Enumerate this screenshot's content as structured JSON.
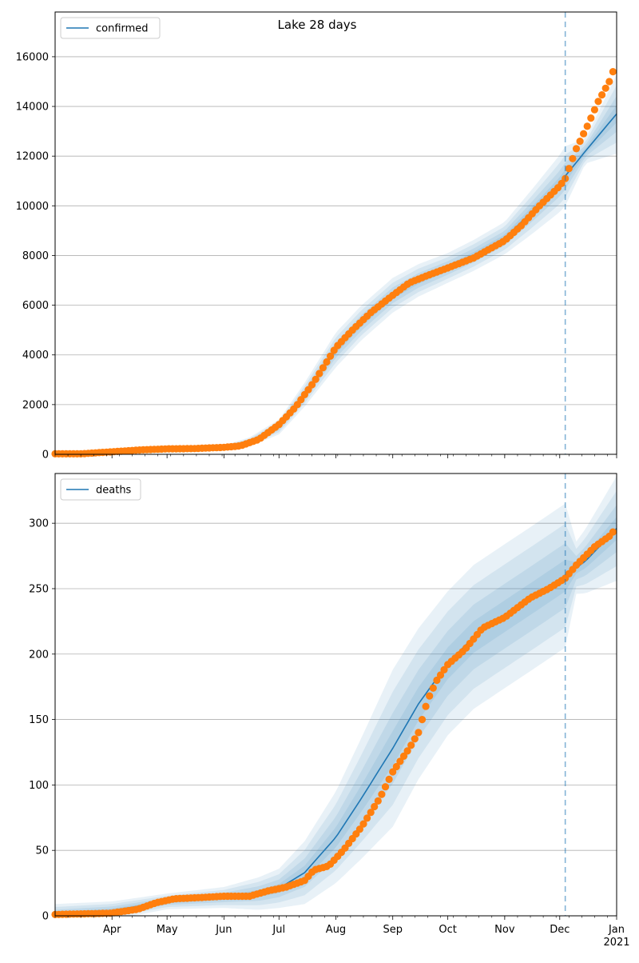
{
  "figure_title": "Lake 28 days",
  "colors": {
    "model": "#1f77b4",
    "observed": "#ff7f0e",
    "band": "#1f77b4",
    "grid": "#b0b0b0",
    "cutoff": "#1f77b4"
  },
  "x_axis": {
    "month_labels": [
      {
        "date": "2020-04-01",
        "label": "Apr"
      },
      {
        "date": "2020-05-01",
        "label": "May"
      },
      {
        "date": "2020-06-01",
        "label": "Jun"
      },
      {
        "date": "2020-07-01",
        "label": "Jul"
      },
      {
        "date": "2020-08-01",
        "label": "Aug"
      },
      {
        "date": "2020-09-01",
        "label": "Sep"
      },
      {
        "date": "2020-10-01",
        "label": "Oct"
      },
      {
        "date": "2020-11-01",
        "label": "Nov"
      },
      {
        "date": "2020-12-01",
        "label": "Dec"
      },
      {
        "date": "2021-01-01",
        "label": "Jan"
      }
    ],
    "year_label": "2021"
  },
  "chart_data": [
    {
      "type": "line",
      "title": "Lake 28 days",
      "xlim": [
        "2020-03-01",
        "2021-01-01"
      ],
      "ylim": [
        0,
        17800
      ],
      "yticks": [
        0,
        2000,
        4000,
        6000,
        8000,
        10000,
        12000,
        14000,
        16000
      ],
      "grid": "horizontal",
      "legend": "top-left",
      "cutoff_date": "2020-12-04",
      "series": [
        {
          "name": "confirmed",
          "kind": "model",
          "points": [
            [
              "2020-03-01",
              20
            ],
            [
              "2020-04-01",
              80
            ],
            [
              "2020-05-01",
              200
            ],
            [
              "2020-06-01",
              280
            ],
            [
              "2020-06-15",
              500
            ],
            [
              "2020-07-01",
              1100
            ],
            [
              "2020-07-15",
              2400
            ],
            [
              "2020-08-01",
              4200
            ],
            [
              "2020-08-15",
              5300
            ],
            [
              "2020-09-01",
              6400
            ],
            [
              "2020-09-15",
              7000
            ],
            [
              "2020-10-01",
              7500
            ],
            [
              "2020-10-15",
              8000
            ],
            [
              "2020-11-01",
              8700
            ],
            [
              "2020-11-15",
              9700
            ],
            [
              "2020-12-01",
              10900
            ],
            [
              "2020-12-04",
              11200
            ],
            [
              "2020-12-15",
              12200
            ],
            [
              "2021-01-01",
              13700
            ]
          ],
          "band_halfwidths": [
            [
              "2020-03-01",
              10
            ],
            [
              "2020-06-01",
              80
            ],
            [
              "2020-07-01",
              300
            ],
            [
              "2020-08-01",
              700
            ],
            [
              "2020-09-01",
              700
            ],
            [
              "2020-10-01",
              600
            ],
            [
              "2020-11-01",
              650
            ],
            [
              "2020-12-04",
              1200
            ],
            [
              "2020-12-15",
              500
            ],
            [
              "2021-01-01",
              1600
            ]
          ]
        },
        {
          "name": "",
          "kind": "observed",
          "points": [
            [
              "2020-03-01",
              20
            ],
            [
              "2020-03-15",
              20
            ],
            [
              "2020-04-01",
              100
            ],
            [
              "2020-04-15",
              170
            ],
            [
              "2020-05-01",
              220
            ],
            [
              "2020-05-15",
              230
            ],
            [
              "2020-06-01",
              280
            ],
            [
              "2020-06-10",
              340
            ],
            [
              "2020-06-20",
              600
            ],
            [
              "2020-07-01",
              1200
            ],
            [
              "2020-07-10",
              1900
            ],
            [
              "2020-07-20",
              2900
            ],
            [
              "2020-08-01",
              4300
            ],
            [
              "2020-08-10",
              5000
            ],
            [
              "2020-08-20",
              5700
            ],
            [
              "2020-09-01",
              6400
            ],
            [
              "2020-09-10",
              6900
            ],
            [
              "2020-09-20",
              7200
            ],
            [
              "2020-10-01",
              7500
            ],
            [
              "2020-10-15",
              7900
            ],
            [
              "2020-11-01",
              8600
            ],
            [
              "2020-11-10",
              9200
            ],
            [
              "2020-11-20",
              10000
            ],
            [
              "2020-12-01",
              10800
            ],
            [
              "2020-12-04",
              11100
            ],
            [
              "2020-12-10",
              12300
            ],
            [
              "2020-12-16",
              13200
            ],
            [
              "2020-12-22",
              14200
            ],
            [
              "2020-12-28",
              15000
            ],
            [
              "2020-12-31",
              15600
            ]
          ]
        }
      ]
    },
    {
      "type": "line",
      "title": "",
      "xlim": [
        "2020-03-01",
        "2021-01-01"
      ],
      "ylim": [
        0,
        338
      ],
      "yticks": [
        0,
        50,
        100,
        150,
        200,
        250,
        300
      ],
      "grid": "horizontal",
      "legend": "top-left",
      "cutoff_date": "2020-12-04",
      "series": [
        {
          "name": "deaths",
          "kind": "model",
          "points": [
            [
              "2020-03-01",
              1
            ],
            [
              "2020-04-01",
              4
            ],
            [
              "2020-05-01",
              11
            ],
            [
              "2020-06-01",
              14
            ],
            [
              "2020-06-20",
              17
            ],
            [
              "2020-07-01",
              21
            ],
            [
              "2020-07-15",
              33
            ],
            [
              "2020-08-01",
              60
            ],
            [
              "2020-08-15",
              90
            ],
            [
              "2020-09-01",
              128
            ],
            [
              "2020-09-15",
              162
            ],
            [
              "2020-10-01",
              193
            ],
            [
              "2020-10-15",
              213
            ],
            [
              "2020-11-01",
              229
            ],
            [
              "2020-11-15",
              242
            ],
            [
              "2020-12-04",
              260
            ],
            [
              "2020-12-15",
              271
            ],
            [
              "2021-01-01",
              296
            ]
          ],
          "band_halfwidths": [
            [
              "2020-03-01",
              8
            ],
            [
              "2020-05-01",
              6
            ],
            [
              "2020-06-01",
              8
            ],
            [
              "2020-07-01",
              15
            ],
            [
              "2020-08-01",
              35
            ],
            [
              "2020-09-01",
              60
            ],
            [
              "2020-10-01",
              55
            ],
            [
              "2020-11-01",
              55
            ],
            [
              "2020-12-04",
              55
            ],
            [
              "2020-12-10",
              20
            ],
            [
              "2021-01-01",
              40
            ]
          ]
        },
        {
          "name": "",
          "kind": "observed",
          "points": [
            [
              "2020-03-01",
              1
            ],
            [
              "2020-03-31",
              2
            ],
            [
              "2020-04-15",
              5
            ],
            [
              "2020-04-25",
              10
            ],
            [
              "2020-05-05",
              13
            ],
            [
              "2020-05-20",
              14
            ],
            [
              "2020-06-01",
              15
            ],
            [
              "2020-06-15",
              15
            ],
            [
              "2020-06-25",
              19
            ],
            [
              "2020-07-05",
              22
            ],
            [
              "2020-07-15",
              27
            ],
            [
              "2020-07-20",
              35
            ],
            [
              "2020-07-28",
              38
            ],
            [
              "2020-08-05",
              50
            ],
            [
              "2020-08-15",
              68
            ],
            [
              "2020-08-25",
              90
            ],
            [
              "2020-09-01",
              110
            ],
            [
              "2020-09-10",
              128
            ],
            [
              "2020-09-15",
              140
            ],
            [
              "2020-09-20",
              165
            ],
            [
              "2020-09-25",
              180
            ],
            [
              "2020-10-01",
              192
            ],
            [
              "2020-10-10",
              203
            ],
            [
              "2020-10-20",
              220
            ],
            [
              "2020-11-01",
              228
            ],
            [
              "2020-11-15",
              243
            ],
            [
              "2020-11-25",
              250
            ],
            [
              "2020-12-04",
              258
            ],
            [
              "2020-12-10",
              268
            ],
            [
              "2020-12-20",
              282
            ],
            [
              "2020-12-28",
              290
            ],
            [
              "2020-12-31",
              295
            ]
          ]
        }
      ]
    }
  ]
}
